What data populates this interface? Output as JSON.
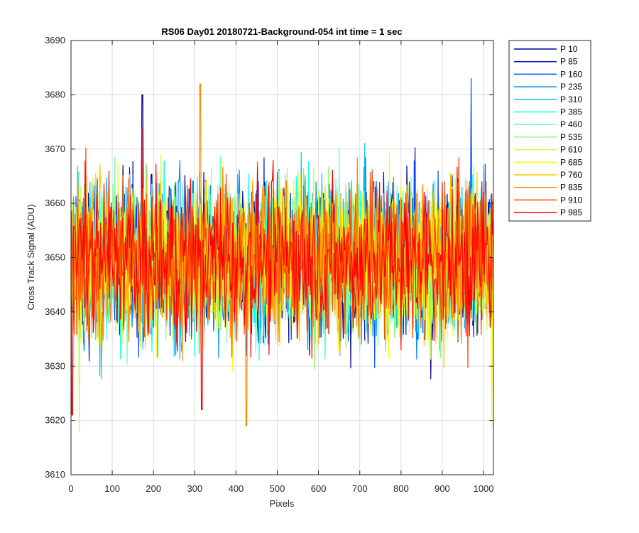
{
  "chart_data": {
    "type": "line",
    "title": "RS06 Day01 20180721-Background-054 int time = 1 sec",
    "xlabel": "Pixels",
    "ylabel": "Cross Track Signal (ADU)",
    "xlim": [
      0,
      1024
    ],
    "ylim": [
      3610,
      3690
    ],
    "xticks": [
      0,
      100,
      200,
      300,
      400,
      500,
      600,
      700,
      800,
      900,
      1000
    ],
    "yticks": [
      3610,
      3620,
      3630,
      3640,
      3650,
      3660,
      3670,
      3680,
      3690
    ],
    "grid": true,
    "legend_position": "outside-right",
    "n_points": 1024,
    "signal_mean": 3650,
    "signal_typical_range": [
      3630,
      3672
    ],
    "series": [
      {
        "name": "P 10",
        "color": "#00008f"
      },
      {
        "name": "P 85",
        "color": "#0016c8"
      },
      {
        "name": "P 160",
        "color": "#0050ff"
      },
      {
        "name": "P 235",
        "color": "#008aff"
      },
      {
        "name": "P 310",
        "color": "#00c4ff"
      },
      {
        "name": "P 385",
        "color": "#1affe5"
      },
      {
        "name": "P 460",
        "color": "#6cffc8"
      },
      {
        "name": "P 535",
        "color": "#8fff70"
      },
      {
        "name": "P 610",
        "color": "#c4ff3a"
      },
      {
        "name": "P 685",
        "color": "#ffff00"
      },
      {
        "name": "P 760",
        "color": "#ffc400"
      },
      {
        "name": "P 835",
        "color": "#ff8a00"
      },
      {
        "name": "P 910",
        "color": "#ff4a00"
      },
      {
        "name": "P 985",
        "color": "#ff0000"
      }
    ],
    "annotated_extremes": [
      {
        "series": "P 160",
        "x": 970,
        "y": 3683
      },
      {
        "series": "P 835",
        "x": 313,
        "y": 3682
      },
      {
        "series": "P 10",
        "x": 173,
        "y": 3680
      },
      {
        "series": "P 610",
        "x": 20,
        "y": 3618
      },
      {
        "series": "P 835",
        "x": 425,
        "y": 3619
      },
      {
        "series": "P 685",
        "x": 1020,
        "y": 3619
      },
      {
        "series": "P 985",
        "x": 3,
        "y": 3621
      },
      {
        "series": "P 985",
        "x": 317,
        "y": 3622
      }
    ]
  }
}
